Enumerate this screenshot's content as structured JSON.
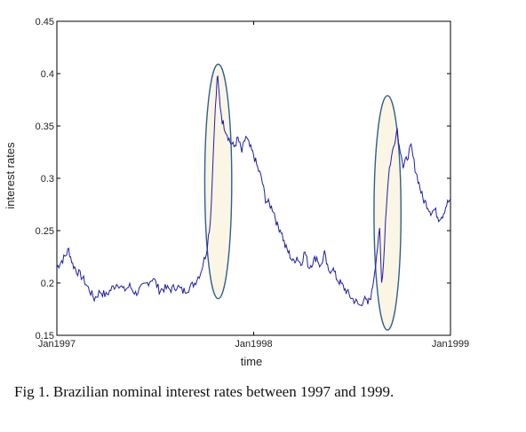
{
  "caption": "Fig 1. Brazilian nominal interest rates between 1997 and 1999.",
  "chart_data": {
    "type": "line",
    "xlabel": "time",
    "ylabel": "interest rates",
    "xlim": [
      "Jan1997",
      "Jan1999"
    ],
    "ylim": [
      0.15,
      0.45
    ],
    "x_ticks": [
      "Jan1997",
      "Jan1998",
      "Jan1999"
    ],
    "y_ticks": [
      "0.15",
      "0.2",
      "0.25",
      "0.3",
      "0.35",
      "0.4",
      "0.45"
    ],
    "grid": false,
    "series_color": "#1f1fa8",
    "highlight_fill": "#fbf5e6",
    "highlight_stroke": "#2f5f8f",
    "series": [
      {
        "x": [
          1997.0,
          1997.02,
          1997.04,
          1997.06,
          1997.08,
          1997.1,
          1997.13,
          1997.16,
          1997.19,
          1997.22,
          1997.25,
          1997.28,
          1997.31,
          1997.34,
          1997.37,
          1997.4,
          1997.43,
          1997.46,
          1997.49,
          1997.52,
          1997.55,
          1997.58,
          1997.61,
          1997.64,
          1997.67,
          1997.7,
          1997.73,
          1997.76,
          1997.78,
          1997.79,
          1997.8,
          1997.81,
          1997.815,
          1997.82,
          1997.83,
          1997.84,
          1997.85,
          1997.86,
          1997.87,
          1997.88,
          1997.9,
          1997.92,
          1997.94,
          1997.96,
          1997.98,
          1998.0,
          1998.02,
          1998.04,
          1998.06,
          1998.08,
          1998.1,
          1998.12,
          1998.14,
          1998.16,
          1998.18,
          1998.2,
          1998.22,
          1998.24,
          1998.26,
          1998.28,
          1998.3,
          1998.32,
          1998.34,
          1998.36,
          1998.38,
          1998.4,
          1998.42,
          1998.44,
          1998.46,
          1998.48,
          1998.5,
          1998.52,
          1998.54,
          1998.56,
          1998.58,
          1998.6,
          1998.62,
          1998.64,
          1998.65,
          1998.66,
          1998.67,
          1998.68,
          1998.69,
          1998.7,
          1998.71,
          1998.72,
          1998.73,
          1998.74,
          1998.75,
          1998.76,
          1998.78,
          1998.8,
          1998.82,
          1998.84,
          1998.86,
          1998.88,
          1998.9,
          1998.92,
          1998.94,
          1998.96,
          1998.98,
          1999.0
        ],
        "y": [
          0.215,
          0.22,
          0.225,
          0.232,
          0.218,
          0.212,
          0.205,
          0.195,
          0.185,
          0.192,
          0.188,
          0.195,
          0.2,
          0.193,
          0.197,
          0.19,
          0.195,
          0.2,
          0.205,
          0.193,
          0.195,
          0.194,
          0.197,
          0.192,
          0.195,
          0.2,
          0.21,
          0.23,
          0.26,
          0.3,
          0.35,
          0.38,
          0.398,
          0.39,
          0.37,
          0.355,
          0.35,
          0.345,
          0.34,
          0.335,
          0.33,
          0.338,
          0.325,
          0.34,
          0.33,
          0.322,
          0.31,
          0.3,
          0.28,
          0.275,
          0.27,
          0.255,
          0.25,
          0.235,
          0.228,
          0.22,
          0.225,
          0.218,
          0.23,
          0.215,
          0.22,
          0.225,
          0.215,
          0.228,
          0.21,
          0.215,
          0.205,
          0.2,
          0.195,
          0.19,
          0.185,
          0.182,
          0.178,
          0.185,
          0.18,
          0.19,
          0.22,
          0.25,
          0.2,
          0.22,
          0.26,
          0.29,
          0.31,
          0.32,
          0.33,
          0.34,
          0.348,
          0.33,
          0.325,
          0.31,
          0.32,
          0.33,
          0.31,
          0.295,
          0.28,
          0.275,
          0.268,
          0.27,
          0.262,
          0.265,
          0.275,
          0.28
        ]
      }
    ],
    "highlights": [
      {
        "x_center": 1997.82,
        "y_center": 0.297,
        "x_radius": 0.0685,
        "y_radius": 0.112
      },
      {
        "x_center": 1998.68,
        "y_center": 0.267,
        "x_radius": 0.0685,
        "y_radius": 0.112
      }
    ]
  }
}
